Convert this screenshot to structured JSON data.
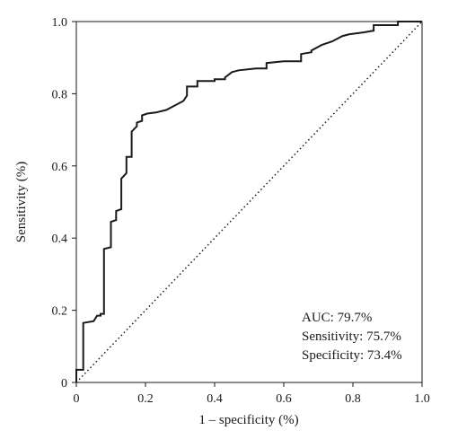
{
  "chart_data": {
    "type": "line",
    "xlabel": "1 – specificity (%)",
    "ylabel": "Sensitivity (%)",
    "xlim": [
      0,
      1
    ],
    "ylim": [
      0,
      1
    ],
    "x_ticks": [
      "0",
      "0.2",
      "0.4",
      "0.6",
      "0.8",
      "1.0"
    ],
    "y_ticks": [
      "0",
      "0.2",
      "0.4",
      "0.6",
      "0.8",
      "1.0"
    ],
    "grid": false,
    "legend": "none",
    "annotations": [
      "AUC: 79.7%",
      "Sensitivity: 75.7%",
      "Specificity: 73.4%"
    ],
    "series": [
      {
        "style": "solid",
        "color": "#1a1a1a",
        "x": [
          0,
          0,
          0.02,
          0.02,
          0.05,
          0.06,
          0.07,
          0.07,
          0.08,
          0.08,
          0.1,
          0.1,
          0.115,
          0.115,
          0.13,
          0.13,
          0.145,
          0.145,
          0.16,
          0.16,
          0.175,
          0.175,
          0.19,
          0.19,
          0.205,
          0.205,
          0.23,
          0.26,
          0.29,
          0.31,
          0.32,
          0.32,
          0.35,
          0.35,
          0.4,
          0.4,
          0.43,
          0.43,
          0.45,
          0.47,
          0.52,
          0.55,
          0.55,
          0.6,
          0.65,
          0.65,
          0.68,
          0.68,
          0.71,
          0.74,
          0.77,
          0.79,
          0.83,
          0.86,
          0.86,
          0.9,
          0.93,
          0.93,
          1.0
        ],
        "y": [
          0,
          0.035,
          0.035,
          0.165,
          0.17,
          0.185,
          0.185,
          0.19,
          0.19,
          0.37,
          0.375,
          0.445,
          0.45,
          0.475,
          0.48,
          0.565,
          0.58,
          0.625,
          0.625,
          0.695,
          0.71,
          0.72,
          0.725,
          0.74,
          0.745,
          0.745,
          0.748,
          0.755,
          0.77,
          0.78,
          0.795,
          0.82,
          0.82,
          0.835,
          0.835,
          0.84,
          0.84,
          0.845,
          0.86,
          0.865,
          0.87,
          0.87,
          0.885,
          0.89,
          0.89,
          0.91,
          0.915,
          0.92,
          0.935,
          0.945,
          0.96,
          0.965,
          0.97,
          0.975,
          0.99,
          0.99,
          0.99,
          1.0,
          1.0
        ]
      },
      {
        "style": "dotted",
        "color": "#1a1a1a",
        "x": [
          0,
          1
        ],
        "y": [
          0,
          1
        ]
      }
    ]
  }
}
